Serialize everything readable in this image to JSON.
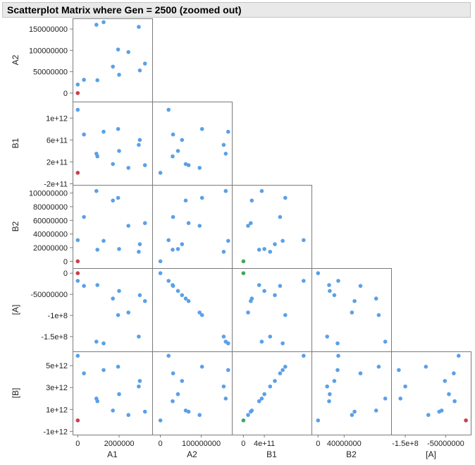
{
  "title": "Scatterplot Matrix where Gen = 2500 (zoomed out)",
  "colors": {
    "point": "#5aa0e8",
    "highlight_red": "#c9404c",
    "highlight_green": "#3fa85a",
    "frame": "#7a7a7a",
    "title_bg": "#e9e9e9"
  },
  "chart_data": {
    "type": "scatter",
    "variables": [
      "A1",
      "A2",
      "B1",
      "B2",
      "[A]",
      "[B]"
    ],
    "ranges": {
      "A1": [
        -250000,
        3600000
      ],
      "A2": [
        -20000000,
        175000000
      ],
      "B1": [
        -220000000000.0,
        1300000000000.0
      ],
      "B2": [
        -10000000,
        112000000
      ],
      "[A]": [
        -185000000,
        12000000
      ],
      "[B]": [
        -1300000000000.0,
        6300000000000.0
      ]
    },
    "axis_ticks": {
      "A1": {
        "values": [
          0,
          2000000
        ],
        "labels": [
          "0",
          "2000000"
        ]
      },
      "A2": {
        "values": [
          0,
          50000000,
          100000000,
          150000000
        ],
        "labels": [
          "0",
          "50000000",
          "100000000",
          "150000000"
        ]
      },
      "B1": {
        "values": [
          -200000000000.0,
          200000000000.0,
          600000000000.0,
          1000000000000.0
        ],
        "labels": [
          "-2e+11",
          "2e+11",
          "6e+11",
          "1e+12"
        ]
      },
      "B2": {
        "values": [
          0,
          20000000,
          40000000,
          60000000,
          80000000,
          100000000
        ],
        "labels": [
          "0",
          "20000000",
          "40000000",
          "60000000",
          "80000000",
          "100000000"
        ]
      },
      "[A]": {
        "values": [
          0,
          -50000000,
          -100000000,
          -150000000
        ],
        "labels": [
          "0",
          "-50000000",
          "-1e+8",
          "-1.5e+8"
        ]
      },
      "[B]": {
        "values": [
          -1000000000000.0,
          1000000000000.0,
          3000000000000.0,
          5000000000000.0
        ],
        "labels": [
          "-1e+12",
          "1e+12",
          "3e+12",
          "5e+12"
        ]
      }
    },
    "x_axis_ticks": {
      "A1": {
        "values": [
          0,
          2000000
        ],
        "labels": [
          "0",
          "2000000"
        ]
      },
      "A2": {
        "values": [
          0,
          100000000
        ],
        "labels": [
          "0",
          "100000000"
        ]
      },
      "B1": {
        "values": [
          0,
          400000000000.0
        ],
        "labels": [
          "0",
          "4e+11"
        ]
      },
      "B2": {
        "values": [
          0,
          40000000
        ],
        "labels": [
          "0",
          "40000000"
        ]
      },
      "[A]": {
        "values": [
          -150000000,
          -50000000
        ],
        "labels": [
          "-1.5e+8",
          "-50000000"
        ]
      }
    },
    "points": [
      {
        "A1": 0,
        "A2": 0,
        "B1": 0,
        "B2": 0,
        "[A]": 0,
        "[B]": 0,
        "group": "origin"
      },
      {
        "A1": 0,
        "A2": 20000000,
        "B1": 1150000000000.0,
        "B2": 31000000,
        "[A]": -18000000,
        "[B]": 5900000000000.0,
        "group": "main"
      },
      {
        "A1": 300000,
        "A2": 31000000,
        "B1": 700000000000.0,
        "B2": 65000000,
        "[A]": -30000000,
        "[B]": 4300000000000.0,
        "group": "main"
      },
      {
        "A1": 900000,
        "A2": 160000000,
        "B1": 350000000000.0,
        "B2": 103000000,
        "[A]": -162000000,
        "[B]": 2000000000000.0,
        "group": "main"
      },
      {
        "A1": 950000,
        "A2": 30000000,
        "B1": 300000000000.0,
        "B2": 17000000,
        "[A]": -28000000,
        "[B]": 1750000000000.0,
        "group": "main"
      },
      {
        "A1": 1250000,
        "A2": 166000000,
        "B1": 750000000000.0,
        "B2": 30000000,
        "[A]": -166000000,
        "[B]": 4600000000000.0,
        "group": "main"
      },
      {
        "A1": 1700000,
        "A2": 62000000,
        "B1": 160000000000.0,
        "B2": 89000000,
        "[A]": -60000000,
        "[B]": 900000000000.0,
        "group": "main"
      },
      {
        "A1": 1950000,
        "A2": 102000000,
        "B1": 800000000000.0,
        "B2": 93000000,
        "[A]": -99000000,
        "[B]": 4900000000000.0,
        "group": "main"
      },
      {
        "A1": 2000000,
        "A2": 43000000,
        "B1": 400000000000.0,
        "B2": 18000000,
        "[A]": -42000000,
        "[B]": 2400000000000.0,
        "group": "main"
      },
      {
        "A1": 2450000,
        "A2": 96000000,
        "B1": 90000000000.0,
        "B2": 52000000,
        "[A]": -93000000,
        "[B]": 500000000000.0,
        "group": "main"
      },
      {
        "A1": 2950000,
        "A2": 155000000,
        "B1": 510000000000.0,
        "B2": 14000000,
        "[A]": -150000000,
        "[B]": 3100000000000.0,
        "group": "main"
      },
      {
        "A1": 3000000,
        "A2": 53000000,
        "B1": 600000000000.0,
        "B2": 25000000,
        "[A]": -52000000,
        "[B]": 3600000000000.0,
        "group": "main"
      },
      {
        "A1": 3250000,
        "A2": 69000000,
        "B1": 140000000000.0,
        "B2": 56000000,
        "[A]": -66000000,
        "[B]": 800000000000.0,
        "group": "main"
      }
    ]
  }
}
